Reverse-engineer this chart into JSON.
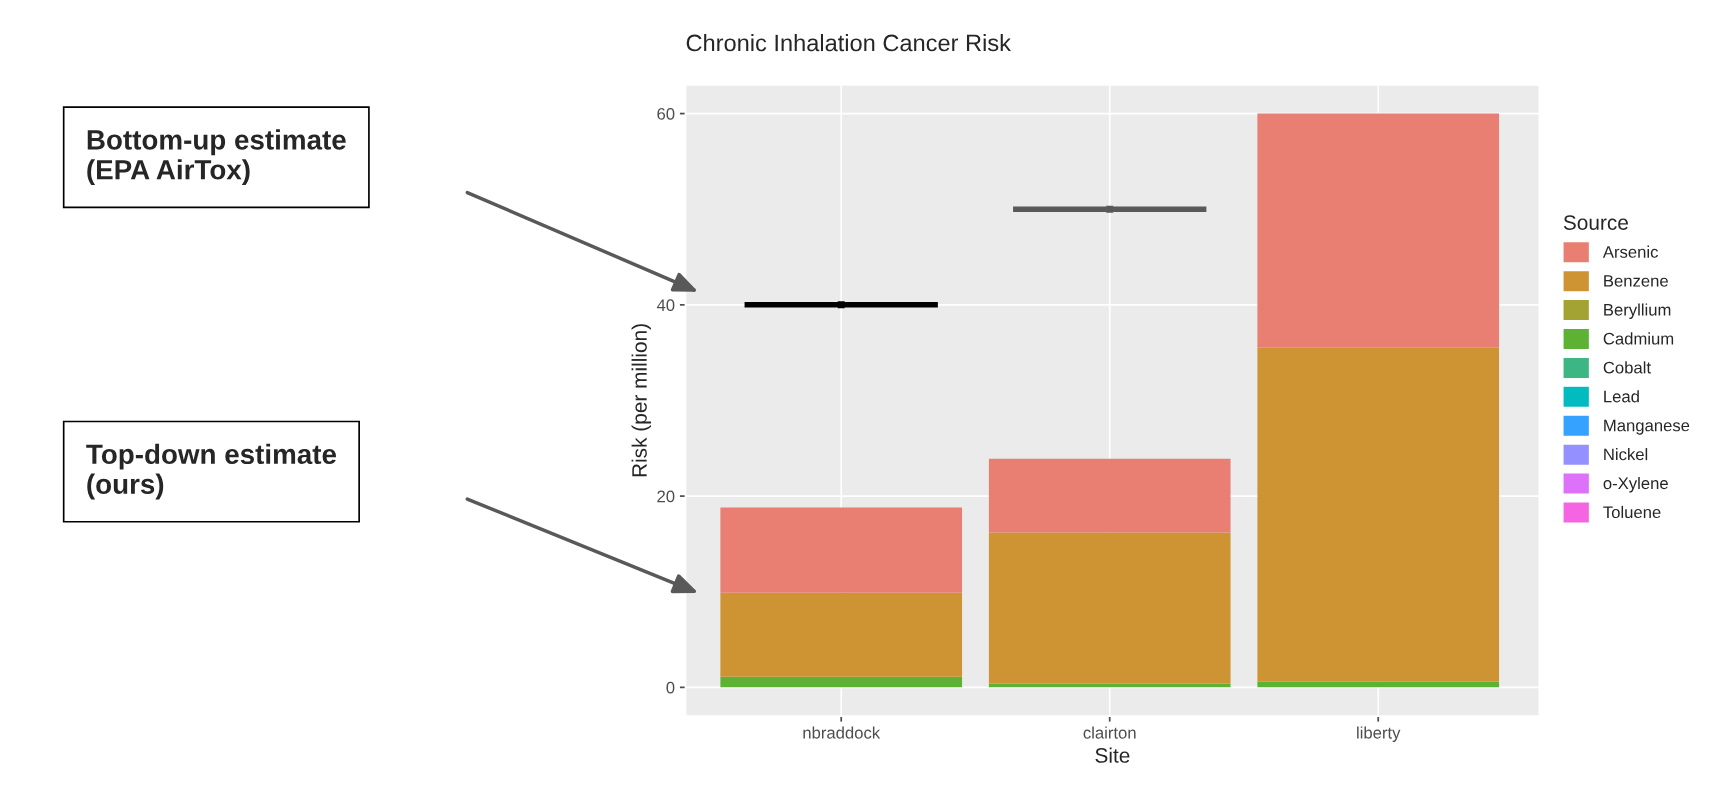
{
  "chart_data": {
    "type": "bar",
    "title": "Chronic Inhalation Cancer Risk",
    "xlabel": "Site",
    "ylabel": "Risk (per million)",
    "legend_title": "Source",
    "categories": [
      "nbraddock",
      "clairton",
      "liberty"
    ],
    "stacked": true,
    "series": [
      {
        "name": "Toluene",
        "color": "#f564e3",
        "values": [
          0,
          0,
          0
        ]
      },
      {
        "name": "o-Xylene",
        "color": "#dd71fa",
        "values": [
          0,
          0,
          0
        ]
      },
      {
        "name": "Nickel",
        "color": "#9590ff",
        "values": [
          0,
          0,
          0
        ]
      },
      {
        "name": "Manganese",
        "color": "#35a2ff",
        "values": [
          0,
          0,
          0
        ]
      },
      {
        "name": "Lead",
        "color": "#00bcc0",
        "values": [
          0,
          0,
          0
        ]
      },
      {
        "name": "Cobalt",
        "color": "#3cb784",
        "values": [
          0,
          0,
          0
        ]
      },
      {
        "name": "Cadmium",
        "color": "#5db234",
        "values": [
          1.1,
          0.4,
          0.6
        ]
      },
      {
        "name": "Beryllium",
        "color": "#a3a333",
        "values": [
          0,
          0,
          0
        ]
      },
      {
        "name": "Benzene",
        "color": "#ce9332",
        "values": [
          8.8,
          15.8,
          34.9
        ]
      },
      {
        "name": "Arsenic",
        "color": "#e87f72",
        "values": [
          8.9,
          7.7,
          24.5
        ]
      },
      {
        "type": "scatter",
        "marker": "square",
        "color": "#000000",
        "values": [
          40,
          null,
          null
        ],
        "line_style": "solid"
      },
      {
        "type": "scatter",
        "marker": "square",
        "color": "#595959",
        "values": [
          null,
          50,
          null
        ],
        "line_style": "solid"
      }
    ],
    "ylim": [
      -3,
      63
    ],
    "yticks": [
      0,
      20,
      40,
      60
    ],
    "grid": true,
    "legend": "right",
    "annotations": [
      "Bottom-up estimate\n(EPA AirTox)",
      "Top-down estimate\n(ours)"
    ]
  }
}
